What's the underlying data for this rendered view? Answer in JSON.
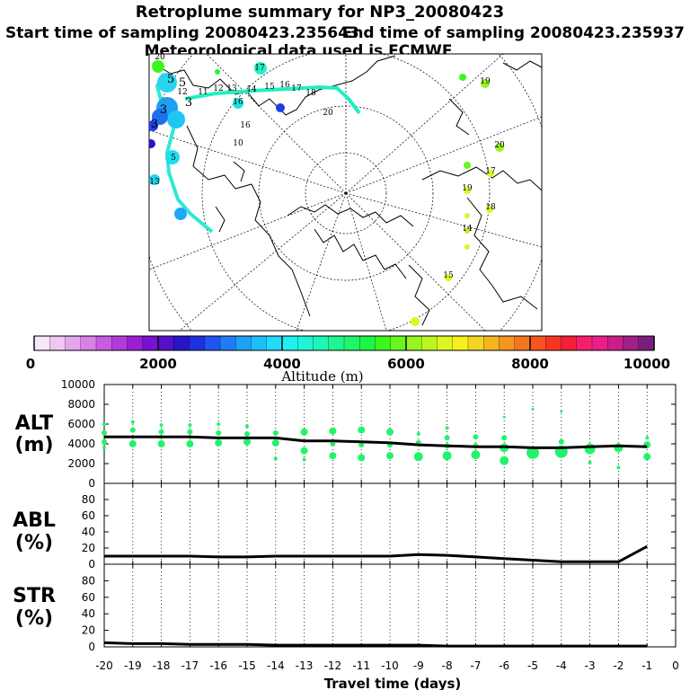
{
  "header": {
    "title": "Retroplume summary for NP3_20080423",
    "start": "Start time of sampling 20080423.235643",
    "end": "End time of sampling 20080423.235937",
    "met": "Meteorological data used is ECMWF"
  },
  "colorbar": {
    "label": "Altitude (m)",
    "ticks": [
      "0",
      "2000",
      "4000",
      "6000",
      "8000",
      "10000"
    ],
    "colors": [
      "#f7e6f7",
      "#efc8f2",
      "#e6a6ee",
      "#d880e8",
      "#c95ae2",
      "#b23ad9",
      "#9a1fd4",
      "#7a10d0",
      "#5510cc",
      "#2a14c8",
      "#1f30e0",
      "#1f55ee",
      "#1f7cf5",
      "#1fa1f8",
      "#1fc0fa",
      "#1fdcfa",
      "#1ff0f0",
      "#1ff5d5",
      "#1ff5b5",
      "#1ff590",
      "#1ff56a",
      "#1ff545",
      "#3cf51f",
      "#6af51f",
      "#95f51f",
      "#bdf51f",
      "#e0f51f",
      "#f5f01f",
      "#f5d51f",
      "#f5b51f",
      "#f5951f",
      "#f5751f",
      "#f5551f",
      "#f5351f",
      "#f51f3a",
      "#f51f6e",
      "#e81f8a",
      "#c81f8a",
      "#a01f88",
      "#7a1f7e"
    ]
  },
  "map": {
    "trajectory_labels": [
      "20",
      "17",
      "5",
      "5",
      "3",
      "3",
      "3",
      "5",
      "12",
      "13",
      "14",
      "15",
      "16",
      "17",
      "18",
      "16",
      "16",
      "19",
      "20",
      "10",
      "13",
      "12",
      "11",
      "20",
      "17",
      "19",
      "18",
      "14",
      "15"
    ]
  },
  "chart_data": [
    {
      "type": "line",
      "name": "alt",
      "panel_label": [
        "ALT",
        "(m)"
      ],
      "x": [
        -20,
        -19,
        -18,
        -17,
        -16,
        -15,
        -14,
        -13,
        -12,
        -11,
        -10,
        -9,
        -8,
        -7,
        -6,
        -5,
        -4,
        -3,
        -2,
        -1
      ],
      "values": [
        4700,
        4700,
        4700,
        4700,
        4600,
        4600,
        4600,
        4300,
        4300,
        4200,
        4100,
        3900,
        3800,
        3700,
        3700,
        3600,
        3600,
        3700,
        3800,
        3700
      ],
      "ylim": [
        0,
        10000
      ],
      "yticks": [
        "0",
        "2000",
        "4000",
        "6000",
        "8000",
        "10000"
      ],
      "points": [
        [
          -20,
          3600,
          2
        ],
        [
          -20,
          4200,
          3
        ],
        [
          -20,
          5100,
          3
        ],
        [
          -20,
          6000,
          2
        ],
        [
          -19,
          4000,
          4
        ],
        [
          -19,
          5400,
          3
        ],
        [
          -19,
          6200,
          2
        ],
        [
          -18,
          4000,
          4
        ],
        [
          -18,
          5200,
          3
        ],
        [
          -18,
          5900,
          2
        ],
        [
          -17,
          4000,
          4
        ],
        [
          -17,
          5200,
          3
        ],
        [
          -17,
          5900,
          2
        ],
        [
          -16,
          4100,
          4
        ],
        [
          -16,
          5100,
          3
        ],
        [
          -16,
          6000,
          2
        ],
        [
          -15,
          4200,
          4
        ],
        [
          -15,
          5000,
          3
        ],
        [
          -15,
          5800,
          2
        ],
        [
          -14,
          2500,
          2
        ],
        [
          -14,
          4100,
          4
        ],
        [
          -14,
          5100,
          3
        ],
        [
          -13,
          3300,
          4
        ],
        [
          -13,
          5200,
          4
        ],
        [
          -13,
          2400,
          2
        ],
        [
          -12,
          2800,
          4
        ],
        [
          -12,
          4000,
          3
        ],
        [
          -12,
          5300,
          4
        ],
        [
          -11,
          2600,
          4
        ],
        [
          -11,
          3900,
          3
        ],
        [
          -11,
          5400,
          4
        ],
        [
          -10,
          2800,
          4
        ],
        [
          -10,
          3900,
          3
        ],
        [
          -10,
          5200,
          4
        ],
        [
          -9,
          2700,
          5
        ],
        [
          -9,
          4100,
          3
        ],
        [
          -9,
          5000,
          2
        ],
        [
          -8,
          2800,
          5
        ],
        [
          -8,
          3800,
          3
        ],
        [
          -8,
          4600,
          3
        ],
        [
          -8,
          5600,
          2
        ],
        [
          -7,
          2900,
          5
        ],
        [
          -7,
          3800,
          3
        ],
        [
          -7,
          4700,
          3
        ],
        [
          -6,
          2300,
          5
        ],
        [
          -6,
          3600,
          5
        ],
        [
          -6,
          4600,
          3
        ],
        [
          -6,
          6700,
          1.5
        ],
        [
          -5,
          3100,
          7
        ],
        [
          -5,
          7500,
          1.5
        ],
        [
          -4,
          3200,
          7
        ],
        [
          -4,
          4200,
          3
        ],
        [
          -4,
          7300,
          1.5
        ],
        [
          -3,
          3500,
          6
        ],
        [
          -3,
          2100,
          2
        ],
        [
          -2,
          3600,
          5
        ],
        [
          -2,
          1600,
          2
        ],
        [
          -1,
          2700,
          4
        ],
        [
          -1,
          3900,
          4
        ],
        [
          -1,
          4600,
          2
        ]
      ]
    },
    {
      "type": "line",
      "name": "abl",
      "panel_label": [
        "ABL",
        "(%)"
      ],
      "x": [
        -20,
        -19,
        -18,
        -17,
        -16,
        -15,
        -14,
        -13,
        -12,
        -11,
        -10,
        -9,
        -8,
        -7,
        -6,
        -5,
        -4,
        -3,
        -2,
        -1
      ],
      "values": [
        10,
        10,
        10,
        10,
        9,
        9,
        10,
        10,
        10,
        10,
        10,
        12,
        11,
        9,
        7,
        5,
        3,
        3,
        3,
        22
      ],
      "ylim": [
        0,
        100
      ],
      "yticks": [
        "0",
        "20",
        "40",
        "60",
        "80"
      ]
    },
    {
      "type": "line",
      "name": "str",
      "panel_label": [
        "STR",
        "(%)"
      ],
      "x": [
        -20,
        -19,
        -18,
        -17,
        -16,
        -15,
        -14,
        -13,
        -12,
        -11,
        -10,
        -9,
        -8,
        -7,
        -6,
        -5,
        -4,
        -3,
        -2,
        -1
      ],
      "values": [
        5,
        4,
        4,
        3,
        3,
        3,
        2,
        2,
        2,
        2,
        2,
        2,
        1,
        1,
        1,
        1,
        1,
        1,
        1,
        1
      ],
      "ylim": [
        0,
        100
      ],
      "yticks": [
        "0",
        "20",
        "40",
        "60",
        "80"
      ]
    }
  ],
  "xaxis": {
    "ticks": [
      "-20",
      "-19",
      "-18",
      "-17",
      "-16",
      "-15",
      "-14",
      "-13",
      "-12",
      "-11",
      "-10",
      "-9",
      "-8",
      "-7",
      "-6",
      "-5",
      "-4",
      "-3",
      "-2",
      "-1",
      "0"
    ],
    "label": "Travel time (days)"
  }
}
